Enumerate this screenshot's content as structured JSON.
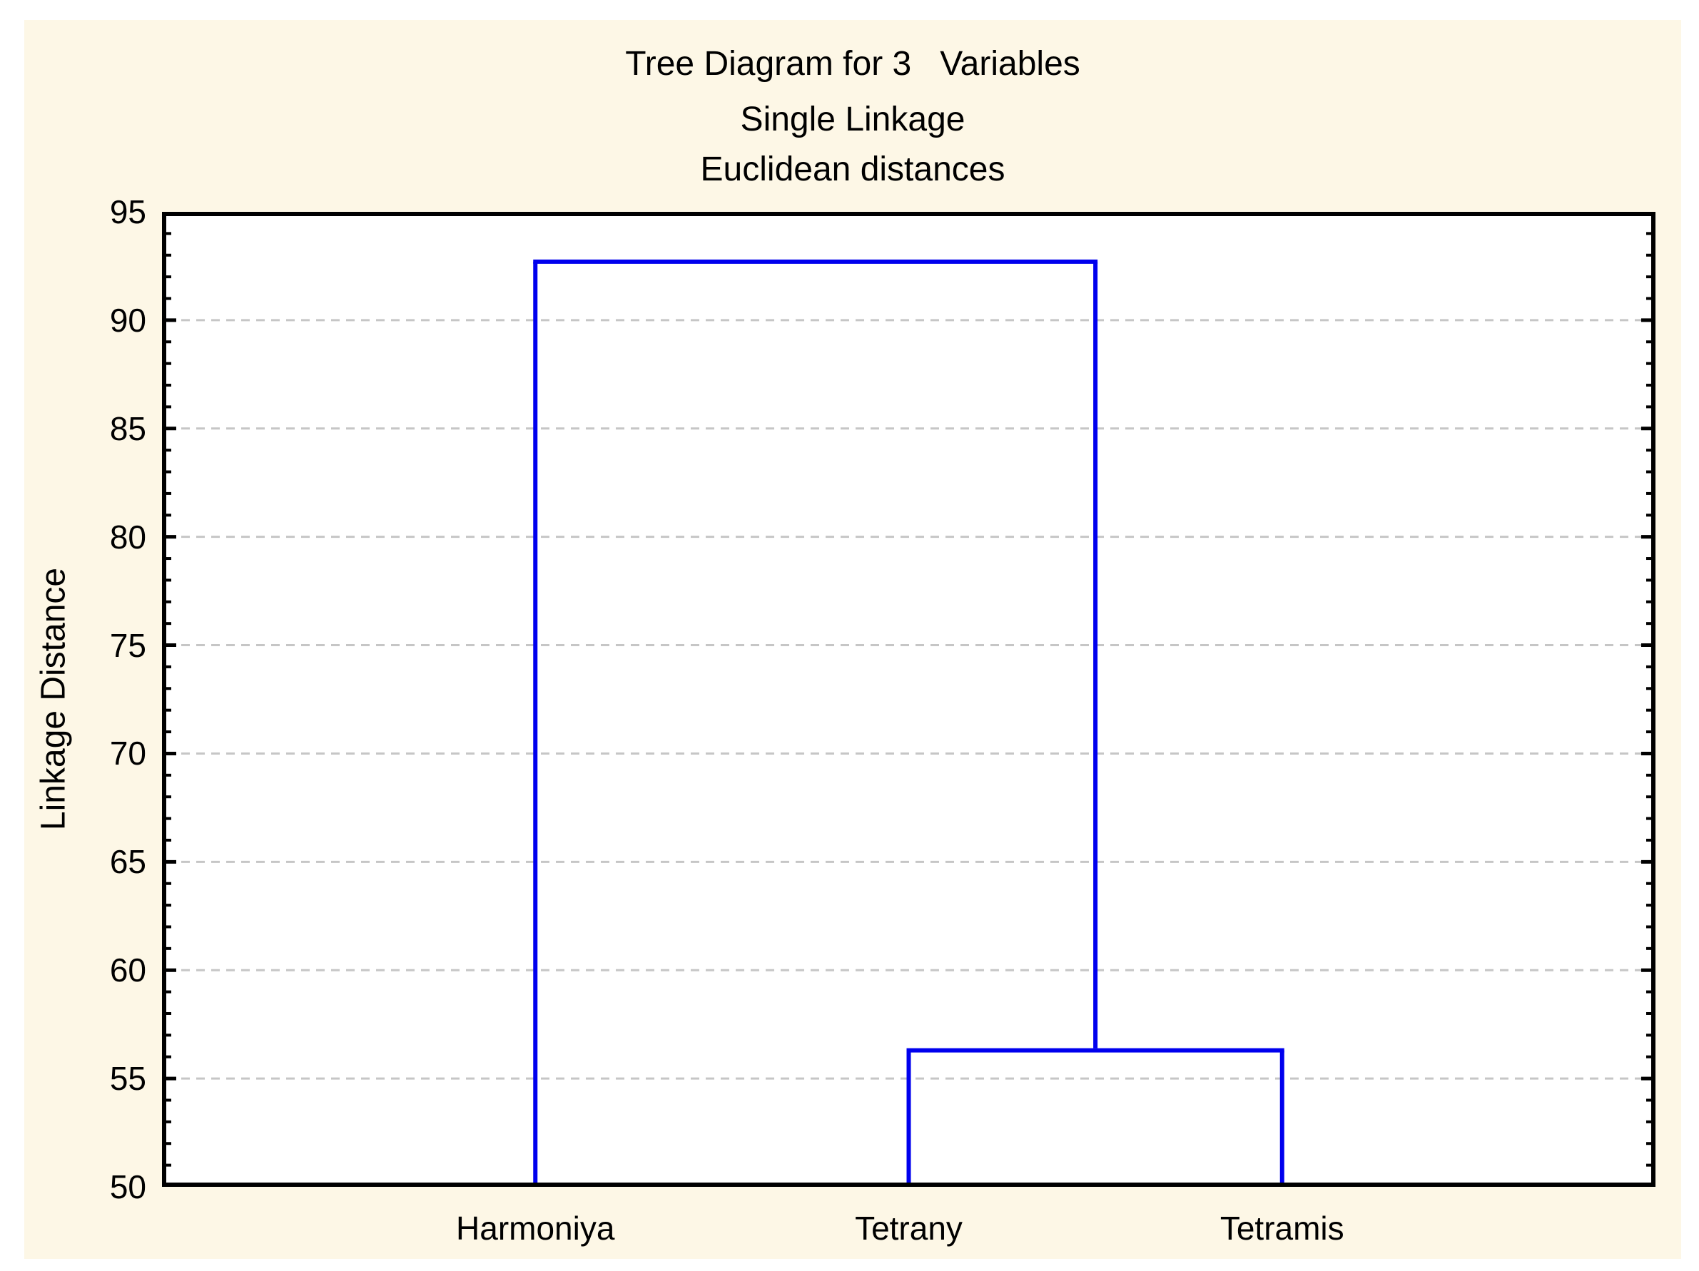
{
  "title": {
    "line1": "Tree Diagram for 3   Variables",
    "line2": "Single Linkage",
    "line3": "Euclidean distances"
  },
  "y_axis": {
    "label": "Linkage Distance",
    "min": 50,
    "max": 95,
    "major_step": 5,
    "minor_step": 1,
    "tick_labels": [
      "95",
      "90",
      "85",
      "80",
      "75",
      "70",
      "65",
      "60",
      "55",
      "50"
    ]
  },
  "x_axis": {
    "leaf_labels": [
      "Harmoniya",
      "Tetrany",
      "Tetramis"
    ]
  },
  "chart_data": {
    "type": "dendrogram",
    "orientation": "vertical",
    "title": "Tree Diagram for 3   Variables",
    "subtitle_method": "Single Linkage",
    "subtitle_metric": "Euclidean distances",
    "ylabel": "Linkage Distance",
    "ylim": [
      50,
      95
    ],
    "grid": "horizontal dashed gridlines at multiples of 5",
    "legend": "none",
    "leaves": [
      "Harmoniya",
      "Tetrany",
      "Tetramis"
    ],
    "merges": [
      {
        "children": [
          1,
          2
        ],
        "members": "Tetrany + Tetramis",
        "distance": 56.3
      },
      {
        "children": [
          0,
          3
        ],
        "members": "Harmoniya + (Tetrany,Tetramis)",
        "distance": 92.7
      }
    ]
  },
  "colors": {
    "page_margin": "#FFFFFF",
    "panel_background": "#FDF7E6",
    "plot_background": "#FFFFFF",
    "dendrogram_line": "#0000EE",
    "frame": "#000000",
    "gridline": "#C6C6C6",
    "text": "#000000"
  }
}
